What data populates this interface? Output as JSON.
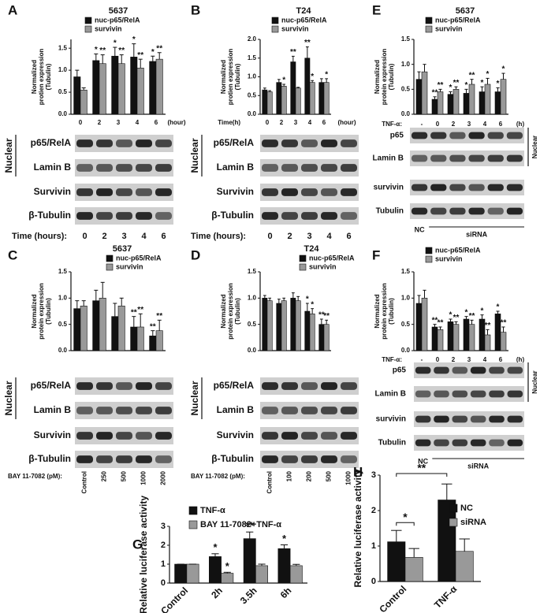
{
  "chart_data": [
    {
      "type": "bar",
      "panel": "A",
      "title": "5637",
      "ylabel": [
        "Normalized",
        "protien expression",
        "(Tubulin)"
      ],
      "xlabel": "(hour)",
      "categories": [
        "0",
        "2",
        "3",
        "4",
        "6"
      ],
      "series": [
        {
          "name": "nuc-p65/RelA",
          "color": "#111111",
          "values": [
            0.85,
            1.22,
            1.32,
            1.3,
            1.2
          ],
          "errors": [
            0.15,
            0.15,
            0.2,
            0.3,
            0.12
          ],
          "stars": [
            null,
            "*",
            "*",
            "*",
            "*"
          ]
        },
        {
          "name": "survivin",
          "color": "#999999",
          "values": [
            0.55,
            1.15,
            1.15,
            1.05,
            1.25
          ],
          "errors": [
            0.05,
            0.2,
            0.2,
            0.2,
            0.15
          ],
          "stars": [
            null,
            "**",
            "**",
            "**",
            "**"
          ]
        }
      ],
      "ylim": [
        0,
        1.7
      ],
      "yticks": [
        {
          "value": 0,
          "label": "0.0"
        },
        0.5,
        {
          "value": 1,
          "label": "1.0"
        },
        1.5
      ]
    },
    {
      "type": "bar",
      "panel": "B",
      "title": "T24",
      "ylabel": [
        "Normalized",
        "protien expression",
        "(Tubulin)"
      ],
      "xlabel_left": "Time(h)",
      "xlabel": "(hour)",
      "categories": [
        "0",
        "2",
        "3",
        "4",
        "6"
      ],
      "series": [
        {
          "name": "nuc-p65/RelA",
          "color": "#111111",
          "values": [
            0.65,
            0.85,
            1.4,
            1.5,
            0.85
          ],
          "errors": [
            0.05,
            0.08,
            0.15,
            0.3,
            0.1
          ],
          "stars": [
            null,
            null,
            "**",
            "**",
            null
          ]
        },
        {
          "name": "survivin",
          "color": "#999999",
          "values": [
            0.6,
            0.75,
            0.7,
            0.85,
            0.85
          ],
          "errors": [
            0.03,
            0.05,
            0.02,
            0.05,
            0.1
          ],
          "stars": [
            null,
            "*",
            null,
            "*",
            "*"
          ]
        }
      ],
      "ylim": [
        0,
        2
      ],
      "yticks": [
        {
          "value": 0,
          "label": "0.0"
        },
        0.5,
        {
          "value": 1,
          "label": "1.0"
        },
        1.5,
        {
          "value": 2,
          "label": "2.0"
        }
      ]
    },
    {
      "type": "bar",
      "panel": "E",
      "title": "5637",
      "ylabel": [
        "Normalized",
        "protein expression",
        "(Tubulin)"
      ],
      "xlabel_left": "TNF-α:",
      "xlabel": "(h)",
      "categories": [
        "-",
        "0",
        "2",
        "3",
        "4",
        "6"
      ],
      "series": [
        {
          "name": "nuc-p65/RelA",
          "color": "#111111",
          "values": [
            0.7,
            0.3,
            0.4,
            0.42,
            0.45,
            0.45
          ],
          "errors": [
            0.15,
            0.05,
            0.05,
            0.08,
            0.1,
            0.08
          ],
          "stars": [
            null,
            "**",
            "*",
            "*",
            "*",
            "*"
          ]
        },
        {
          "name": "survivin",
          "color": "#999999",
          "values": [
            0.85,
            0.45,
            0.5,
            0.6,
            0.6,
            0.7
          ],
          "errors": [
            0.15,
            0.05,
            0.05,
            0.1,
            0.12,
            0.12
          ],
          "stars": [
            null,
            "**",
            "**",
            "**",
            "*",
            "*"
          ]
        }
      ],
      "ylim": [
        0,
        1.5
      ],
      "yticks": [
        {
          "value": 0,
          "label": "0.0"
        },
        0.5,
        {
          "value": 1,
          "label": "1.0"
        },
        1.5
      ]
    },
    {
      "type": "bar",
      "panel": "C",
      "title": "5637",
      "ylabel": [
        "Normalized",
        "protein expression",
        "(Tubulin)"
      ],
      "categories": [
        "Control",
        "250",
        "500",
        "1000",
        "2000"
      ],
      "series": [
        {
          "name": "nuc-p65/RelA",
          "color": "#111111",
          "values": [
            0.8,
            0.95,
            0.65,
            0.45,
            0.28
          ],
          "errors": [
            0.15,
            0.2,
            0.25,
            0.2,
            0.1
          ],
          "stars": [
            null,
            null,
            null,
            "**",
            "**"
          ]
        },
        {
          "name": "survivin",
          "color": "#999999",
          "values": [
            0.85,
            1.0,
            0.85,
            0.45,
            0.38
          ],
          "errors": [
            0.1,
            0.3,
            0.15,
            0.25,
            0.2
          ],
          "stars": [
            null,
            null,
            null,
            "**",
            "**"
          ]
        }
      ],
      "ylim": [
        0,
        1.5
      ],
      "yticks": [
        {
          "value": 0,
          "label": "0.0"
        },
        0.5,
        {
          "value": 1,
          "label": "1.0"
        },
        1.5
      ]
    },
    {
      "type": "bar",
      "panel": "D",
      "title": "T24",
      "ylabel": [
        "Normalized",
        "protein expression",
        "(Tubulin)"
      ],
      "categories": [
        "Control",
        "100",
        "200",
        "500",
        "1000"
      ],
      "series": [
        {
          "name": "nuc-p65/RelA",
          "color": "#111111",
          "values": [
            1.0,
            0.9,
            1.0,
            0.75,
            0.5
          ],
          "errors": [
            0.05,
            0.08,
            0.1,
            0.15,
            0.1
          ],
          "stars": [
            null,
            null,
            null,
            "*",
            "**"
          ]
        },
        {
          "name": "survivin",
          "color": "#999999",
          "values": [
            0.95,
            0.95,
            0.95,
            0.7,
            0.5
          ],
          "errors": [
            0.05,
            0.05,
            0.08,
            0.1,
            0.08
          ],
          "stars": [
            null,
            null,
            null,
            "*",
            "**"
          ]
        }
      ],
      "ylim": [
        0,
        1.5
      ],
      "yticks": [
        {
          "value": 0,
          "label": "0.0"
        },
        0.5,
        {
          "value": 1,
          "label": "1.0"
        },
        1.5
      ]
    },
    {
      "type": "bar",
      "panel": "F",
      "ylabel": [
        "Normalized",
        "protein expression",
        "(Tubulin)"
      ],
      "xlabel_left": "TNF-α:",
      "xlabel": "(h)",
      "categories": [
        "-",
        "0",
        "2",
        "3",
        "4",
        "6"
      ],
      "series": [
        {
          "name": "nuc-p65/RelA",
          "color": "#111111",
          "values": [
            0.9,
            0.45,
            0.55,
            0.6,
            0.6,
            0.7
          ],
          "errors": [
            0.15,
            0.05,
            0.05,
            0.05,
            0.08,
            0.05
          ],
          "stars": [
            null,
            "**",
            "*",
            "*",
            "*",
            "*"
          ]
        },
        {
          "name": "survivin",
          "color": "#999999",
          "values": [
            1.0,
            0.4,
            0.5,
            0.5,
            0.3,
            0.35
          ],
          "errors": [
            0.15,
            0.05,
            0.05,
            0.08,
            0.1,
            0.1
          ],
          "stars": [
            null,
            "**",
            "**",
            "**",
            "**",
            "**"
          ]
        }
      ],
      "ylim": [
        0,
        1.5
      ],
      "yticks": [
        {
          "value": 0,
          "label": "0.0"
        },
        0.5,
        {
          "value": 1,
          "label": "1.0"
        },
        1.5
      ]
    },
    {
      "type": "bar",
      "panel": "G",
      "ylabel": [
        "Relative luciferase activity"
      ],
      "categories": [
        "Control",
        "2h",
        "3.5h",
        "6h"
      ],
      "series": [
        {
          "name": "TNF-α",
          "color": "#111111",
          "values": [
            1,
            1.4,
            2.35,
            1.82
          ],
          "errors": [
            0,
            0.15,
            0.35,
            0.2
          ],
          "stars": [
            null,
            "*",
            "**",
            "*"
          ]
        },
        {
          "name": "BAY 11-7082+TNF-α",
          "color": "#999999",
          "values": [
            1,
            0.52,
            0.92,
            0.92
          ],
          "errors": [
            0,
            0.05,
            0.08,
            0.07
          ],
          "stars": [
            null,
            "*",
            null,
            null
          ]
        }
      ],
      "ylim": [
        0,
        3
      ],
      "yticks": [
        0,
        1,
        2,
        3
      ]
    },
    {
      "type": "bar",
      "panel": "H",
      "ylabel": [
        "Relative luciferase activity"
      ],
      "categories": [
        "Control",
        "TNF-α"
      ],
      "series": [
        {
          "name": "NC",
          "color": "#111111",
          "values": [
            1.12,
            2.3
          ],
          "errors": [
            0.32,
            0.45
          ]
        },
        {
          "name": "siRNA",
          "color": "#999999",
          "values": [
            0.68,
            0.85
          ],
          "errors": [
            0.25,
            0.35
          ]
        }
      ],
      "ylim": [
        0,
        3
      ],
      "yticks": [
        0,
        1,
        2,
        3
      ],
      "annotations": [
        "*",
        "**"
      ]
    }
  ],
  "blots": [
    {
      "rows": [
        "p65/RelA",
        "Lamin B",
        "Survivin",
        "β-Tubulin"
      ],
      "group": "Nuclear",
      "lanes_label": "Time (hours):",
      "lanes": [
        "0",
        "2",
        "3",
        "4",
        "6"
      ]
    },
    {
      "rows": [
        "p65/RelA",
        "Lamin B",
        "Survivin",
        "β-Tubulin"
      ],
      "group": "Nuclear",
      "lanes_label": "Time (hours):",
      "lanes": [
        "0",
        "2",
        "3",
        "4",
        "6"
      ]
    },
    {
      "rows": [
        "p65",
        "Lamin B",
        "survivin",
        "Tubulin"
      ],
      "group": "Nuclear",
      "lanes": [
        "NC",
        "siRNA"
      ]
    },
    {
      "rows": [
        "p65/RelA",
        "Lamin B",
        "Survivin",
        "β-Tubulin"
      ],
      "group": "Nuclear",
      "lanes_label": "BAY 11-7082 (pM):"
    },
    {
      "rows": [
        "p65/RelA",
        "Lamin B",
        "Survivin",
        "β-Tubulin"
      ],
      "group": "Nuclear",
      "lanes_label": "BAY 11-7082 (pM):"
    },
    {
      "rows": [
        "p65",
        "Lamin B",
        "survivin",
        "Tubulin"
      ],
      "group": "Nuclear",
      "lanes": [
        "NC",
        "siRNA"
      ]
    }
  ]
}
